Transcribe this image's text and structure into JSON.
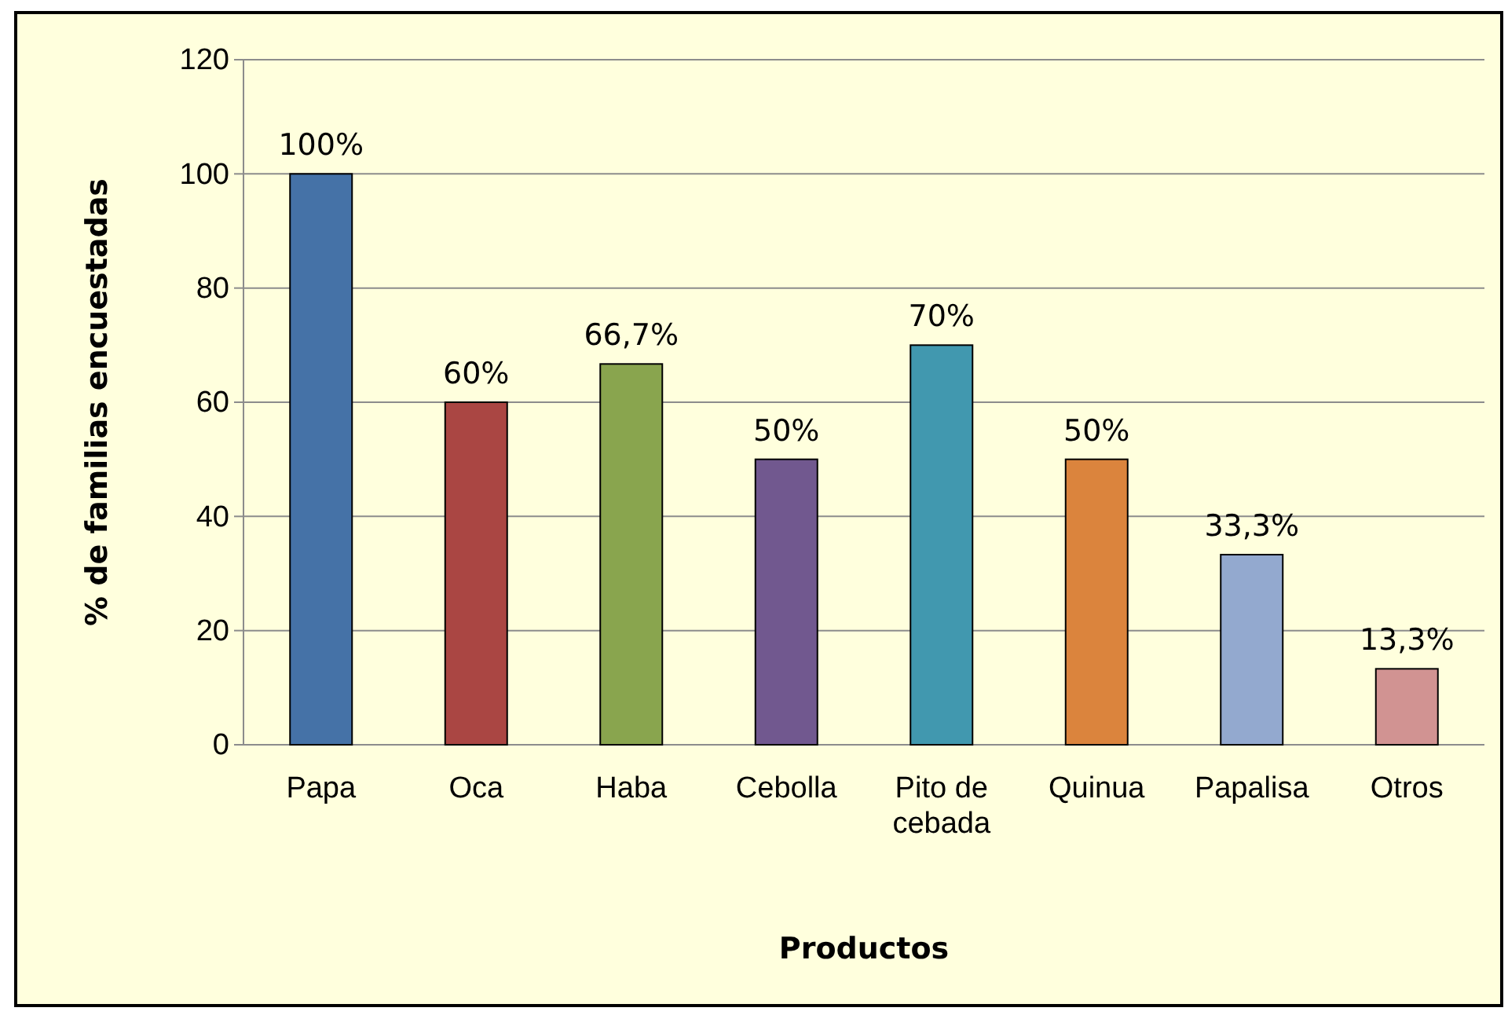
{
  "chart_data": {
    "type": "bar",
    "xlabel": "Productos",
    "ylabel": "% de familias encuestadas",
    "categories": [
      "Papa",
      "Oca",
      "Haba",
      "Cebolla",
      "Pito de cebada",
      "Quinua",
      "Papalisa",
      "Otros"
    ],
    "values": [
      100,
      60,
      66.7,
      50,
      70,
      50,
      33.3,
      13.3
    ],
    "colors": [
      "#4572a7",
      "#aa4643",
      "#89a54e",
      "#71588f",
      "#4198af",
      "#db843d",
      "#93a9cf",
      "#d19392"
    ],
    "value_labels": [
      "100%",
      "60%",
      "66,7%",
      "50%",
      "70%",
      "50%",
      "33,3%",
      "13,3%"
    ],
    "ylim": [
      0,
      120
    ],
    "yticks": [
      0,
      20,
      40,
      60,
      80,
      100,
      120
    ],
    "grid": "y"
  }
}
